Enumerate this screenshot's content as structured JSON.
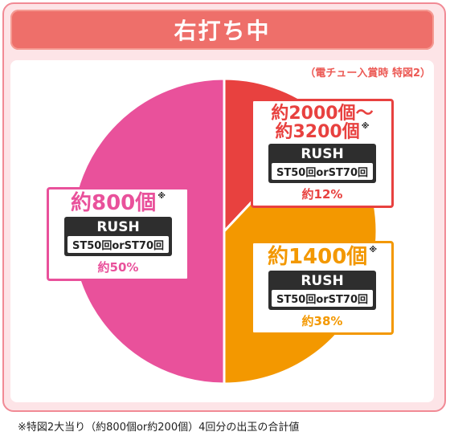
{
  "header": {
    "title": "右打ち中"
  },
  "subnote": "（電チュー入賞時 特図2）",
  "footnote": "※特図2大当り（約800個or約200個）4回分の出玉の合計値",
  "colors": {
    "red": "#e8413f",
    "orange": "#f39800",
    "pink": "#e9519b"
  },
  "chart_data": {
    "type": "pie",
    "slices": [
      {
        "amount": "約2000個〜\n約3200個",
        "mark": "※",
        "rush": "RUSH",
        "st": "ST50回orST70回",
        "percent_label": "約12%",
        "value": 12,
        "color": "#e8413f"
      },
      {
        "amount": "約1400個",
        "mark": "※",
        "rush": "RUSH",
        "st": "ST50回orST70回",
        "percent_label": "約38%",
        "value": 38,
        "color": "#f39800"
      },
      {
        "amount": "約800個",
        "mark": "※",
        "rush": "RUSH",
        "st": "ST50回orST70回",
        "percent_label": "約50%",
        "value": 50,
        "color": "#e9519b"
      }
    ]
  }
}
